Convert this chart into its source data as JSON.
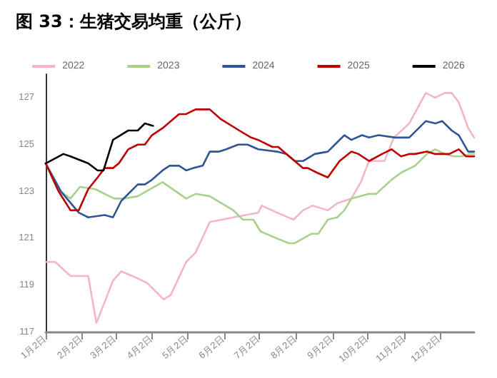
{
  "chart_data": {
    "type": "line",
    "title": "图 33：生猪交易均重（公斤）",
    "legend": "top",
    "grid": false,
    "marker": "none",
    "line_style": "solid",
    "xlim": [
      "--01-02",
      "--12-31"
    ],
    "xticks": [
      {
        "value": "--01-02",
        "label": "1月2日"
      },
      {
        "value": "--02-02",
        "label": "2月2日"
      },
      {
        "value": "--03-02",
        "label": "3月2日"
      },
      {
        "value": "--04-02",
        "label": "4月2日"
      },
      {
        "value": "--05-02",
        "label": "5月2日"
      },
      {
        "value": "--06-02",
        "label": "6月2日"
      },
      {
        "value": "--07-02",
        "label": "7月2日"
      },
      {
        "value": "--08-02",
        "label": "8月2日"
      },
      {
        "value": "--09-02",
        "label": "9月2日"
      },
      {
        "value": "--10-02",
        "label": "10月2日"
      },
      {
        "value": "--11-02",
        "label": "11月2日"
      },
      {
        "value": "--12-02",
        "label": "12月2日"
      }
    ],
    "ylim": [
      117,
      128
    ],
    "yticks": [
      117,
      119,
      121,
      123,
      125,
      127
    ],
    "series": [
      {
        "name": "2022",
        "color": "#f4b6c2",
        "x": [
          "--01-02",
          "--01-10",
          "--01-23",
          "--02-07",
          "--02-14",
          "--02-28",
          "--03-07",
          "--03-21",
          "--03-29",
          "--04-12",
          "--04-18",
          "--05-01",
          "--05-09",
          "--05-21",
          "--06-10",
          "--07-01",
          "--07-04",
          "--07-17",
          "--07-31",
          "--08-08",
          "--08-16",
          "--08-29",
          "--09-06",
          "--09-18",
          "--09-26",
          "--10-03",
          "--10-16",
          "--10-24",
          "--11-06",
          "--11-20",
          "--11-28",
          "--12-06",
          "--12-12",
          "--12-18",
          "--12-26",
          "--12-31"
        ],
        "values": [
          120.0,
          120.0,
          119.4,
          119.4,
          117.4,
          119.2,
          119.6,
          119.3,
          119.1,
          118.4,
          118.6,
          120.0,
          120.4,
          121.7,
          121.9,
          122.1,
          122.4,
          122.1,
          121.8,
          122.2,
          122.4,
          122.2,
          122.5,
          122.7,
          123.4,
          124.3,
          124.3,
          125.3,
          125.9,
          127.2,
          127.0,
          127.2,
          127.2,
          126.8,
          125.7,
          125.3
        ]
      },
      {
        "name": "2023",
        "color": "#a9d18e",
        "x": [
          "--01-02",
          "--01-12",
          "--01-23",
          "--01-31",
          "--02-13",
          "--03-01",
          "--03-09",
          "--03-21",
          "--04-11",
          "--05-01",
          "--05-09",
          "--05-21",
          "--06-10",
          "--06-18",
          "--06-27",
          "--07-03",
          "--07-17",
          "--07-27",
          "--08-01",
          "--08-15",
          "--08-21",
          "--08-29",
          "--09-06",
          "--09-12",
          "--09-18",
          "--10-03",
          "--10-09",
          "--10-22",
          "--10-30",
          "--11-11",
          "--11-21",
          "--11-28",
          "--12-06",
          "--12-14",
          "--12-20",
          "--12-27",
          "--12-31"
        ],
        "values": [
          124.2,
          123.1,
          122.7,
          123.2,
          123.1,
          122.7,
          122.7,
          122.8,
          123.4,
          122.7,
          122.9,
          122.8,
          122.2,
          121.8,
          121.8,
          121.3,
          121.0,
          120.8,
          120.8,
          121.2,
          121.2,
          121.8,
          121.9,
          122.2,
          122.7,
          122.9,
          122.9,
          123.5,
          123.8,
          124.1,
          124.6,
          124.8,
          124.6,
          124.5,
          124.5,
          124.6,
          124.6
        ]
      },
      {
        "name": "2024",
        "color": "#2f5597",
        "x": [
          "--01-02",
          "--01-15",
          "--01-30",
          "--02-07",
          "--02-21",
          "--02-28",
          "--03-07",
          "--03-21",
          "--03-27",
          "--04-02",
          "--04-11",
          "--04-17",
          "--04-25",
          "--05-01",
          "--05-07",
          "--05-15",
          "--05-21",
          "--05-29",
          "--06-04",
          "--06-14",
          "--06-22",
          "--07-01",
          "--07-17",
          "--07-25",
          "--08-01",
          "--08-08",
          "--08-18",
          "--08-29",
          "--09-04",
          "--09-12",
          "--09-18",
          "--09-27",
          "--10-03",
          "--10-11",
          "--10-25",
          "--11-06",
          "--11-20",
          "--11-28",
          "--12-04",
          "--12-12",
          "--12-18",
          "--12-26",
          "--12-31"
        ],
        "values": [
          124.2,
          123.0,
          122.1,
          121.9,
          122.0,
          121.9,
          122.6,
          123.3,
          123.3,
          123.5,
          123.9,
          124.1,
          124.1,
          123.9,
          124.0,
          124.1,
          124.7,
          124.7,
          124.8,
          125.0,
          125.0,
          124.8,
          124.7,
          124.6,
          124.3,
          124.3,
          124.6,
          124.7,
          125.0,
          125.4,
          125.2,
          125.4,
          125.3,
          125.4,
          125.3,
          125.3,
          126.0,
          125.9,
          126.0,
          125.6,
          125.4,
          124.7,
          124.7
        ]
      },
      {
        "name": "2025",
        "color": "#c00000",
        "x": [
          "--01-02",
          "--01-13",
          "--01-23",
          "--01-30",
          "--02-07",
          "--02-15",
          "--02-21",
          "--02-28",
          "--03-05",
          "--03-13",
          "--03-21",
          "--03-27",
          "--04-02",
          "--04-11",
          "--04-25",
          "--05-01",
          "--05-09",
          "--05-15",
          "--05-21",
          "--05-30",
          "--06-15",
          "--06-25",
          "--07-01",
          "--07-13",
          "--07-18",
          "--07-25",
          "--08-01",
          "--08-08",
          "--08-12",
          "--08-20",
          "--08-29",
          "--09-08",
          "--09-18",
          "--09-24",
          "--10-03",
          "--10-14",
          "--10-22",
          "--10-30",
          "--11-06",
          "--11-11",
          "--11-21",
          "--11-28",
          "--12-10",
          "--12-18",
          "--12-24",
          "--12-31"
        ],
        "values": [
          124.2,
          123.0,
          122.2,
          122.2,
          123.1,
          123.6,
          124.0,
          124.0,
          124.2,
          124.8,
          125.0,
          125.0,
          125.4,
          125.7,
          126.3,
          126.3,
          126.5,
          126.5,
          126.5,
          126.1,
          125.6,
          125.3,
          125.2,
          124.9,
          124.9,
          124.6,
          124.3,
          124.0,
          124.0,
          123.8,
          123.6,
          124.3,
          124.7,
          124.6,
          124.3,
          124.6,
          124.8,
          124.5,
          124.6,
          124.6,
          124.7,
          124.6,
          124.6,
          124.8,
          124.5,
          124.5
        ]
      },
      {
        "name": "2026",
        "color": "#000000",
        "x": [
          "--01-02",
          "--01-17",
          "--01-23",
          "--02-07",
          "--02-15",
          "--02-20",
          "--02-28",
          "--03-13",
          "--03-21",
          "--03-27",
          "--04-03"
        ],
        "values": [
          124.2,
          124.6,
          124.5,
          124.2,
          123.9,
          123.9,
          125.2,
          125.6,
          125.6,
          125.9,
          125.8
        ]
      }
    ]
  }
}
